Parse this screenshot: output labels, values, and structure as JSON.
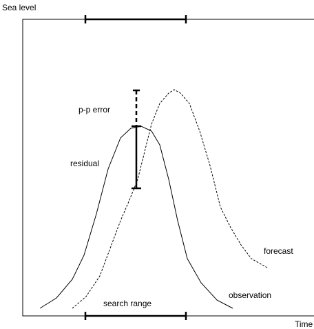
{
  "axes": {
    "y_label": "Sea level",
    "x_label": "Time"
  },
  "annotations": {
    "pp_error": "p-p error",
    "residual": "residual",
    "forecast": "forecast",
    "observation": "observation",
    "search_range": "search range"
  }
}
